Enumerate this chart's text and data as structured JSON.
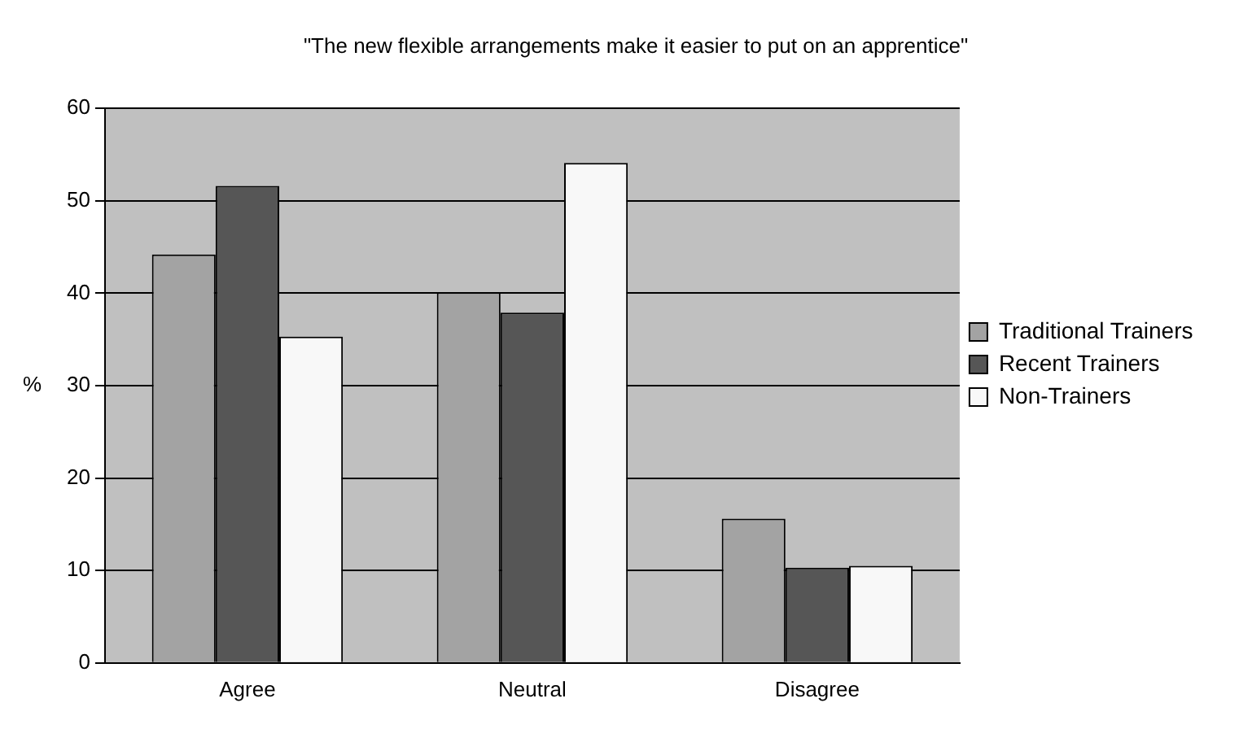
{
  "chart_data": {
    "type": "bar",
    "title": "\"The new flexible arrangements make it easier to put on an apprentice\"",
    "ylabel": "%",
    "categories": [
      "Agree",
      "Neutral",
      "Disagree"
    ],
    "series": [
      {
        "name": "Traditional Trainers",
        "color": "#a3a3a3",
        "values": [
          44.2,
          40.1,
          15.6
        ]
      },
      {
        "name": "Recent Trainers",
        "color": "#565656",
        "values": [
          51.6,
          37.9,
          10.3
        ]
      },
      {
        "name": "Non-Trainers",
        "color": "#f8f8f8",
        "values": [
          35.3,
          54.1,
          10.5
        ]
      }
    ],
    "ylim": [
      0,
      60
    ],
    "yticks": [
      0,
      10,
      20,
      30,
      40,
      50,
      60
    ],
    "grid": "y",
    "legend": "right"
  }
}
